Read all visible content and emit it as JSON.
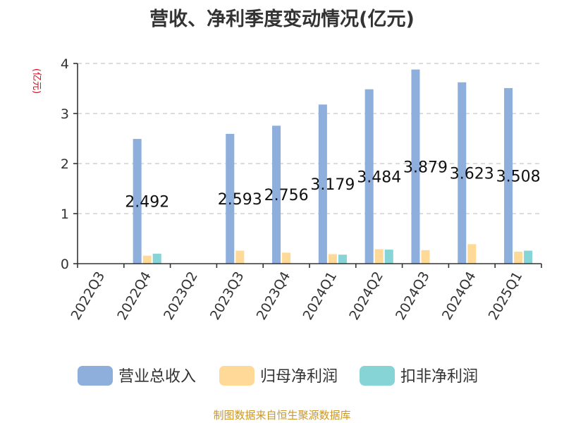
{
  "chart_data": {
    "type": "bar",
    "title": "营收、净利季度变动情况(亿元)",
    "ylabel": "(亿元)",
    "ylim": [
      0,
      4
    ],
    "yticks": [
      0,
      1,
      2,
      3,
      4
    ],
    "categories": [
      "2022Q3",
      "2022Q4",
      "2023Q2",
      "2023Q3",
      "2023Q4",
      "2024Q1",
      "2024Q2",
      "2024Q3",
      "2024Q4",
      "2025Q1"
    ],
    "series": [
      {
        "name": "营业总收入",
        "color": "#8eaedc",
        "values": [
          null,
          2.492,
          null,
          2.593,
          2.756,
          3.179,
          3.484,
          3.879,
          3.623,
          3.508
        ],
        "labels": [
          "",
          "2.492",
          "",
          "2.593",
          "2.756",
          "3.179",
          "3.484",
          "3.879",
          "3.623",
          "3.508"
        ]
      },
      {
        "name": "归母净利润",
        "color": "#ffd998",
        "values": [
          null,
          0.16,
          null,
          0.26,
          0.22,
          0.19,
          0.29,
          0.27,
          0.39,
          0.24
        ]
      },
      {
        "name": "扣非净利润",
        "color": "#86d4d6",
        "values": [
          null,
          0.2,
          null,
          null,
          null,
          0.18,
          0.28,
          null,
          null,
          0.26
        ]
      }
    ],
    "grid": true,
    "legend_position": "bottom"
  },
  "footer": {
    "source": "制图数据来自恒生聚源数据库"
  }
}
